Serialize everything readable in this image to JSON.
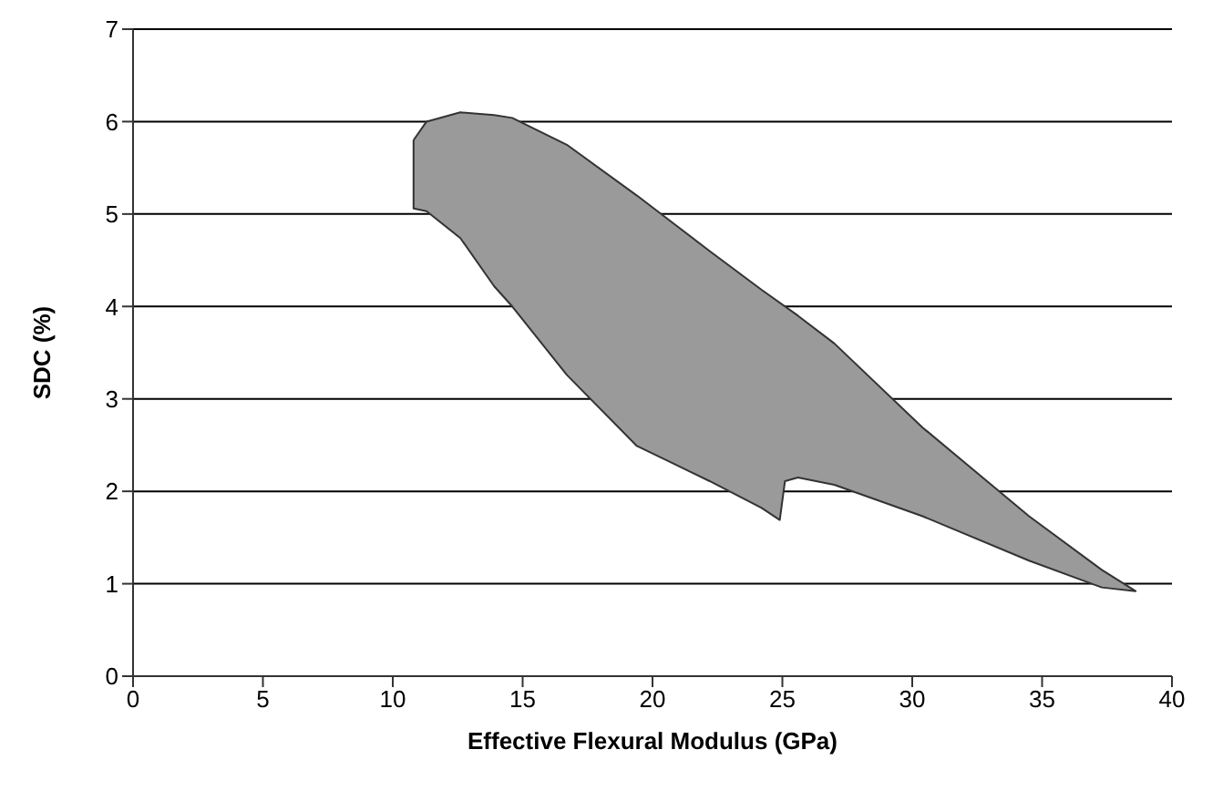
{
  "chart_data": {
    "type": "area",
    "xlabel": "Effective Flexural Modulus (GPa)",
    "ylabel": "SDC (%)",
    "xlim": [
      0,
      40
    ],
    "xticks": [
      0,
      5,
      10,
      15,
      20,
      25,
      30,
      35,
      40
    ],
    "ylim": [
      0,
      7
    ],
    "yticks": [
      0,
      1,
      2,
      3,
      4,
      5,
      6,
      7
    ],
    "grid": "y",
    "series": [
      {
        "color": "#9a9a9a",
        "x": [
          10.8,
          11.3,
          12.6,
          13.9,
          14.6,
          16.7,
          19.4,
          20.8,
          22.2,
          24.2,
          25.6,
          27,
          30.4,
          34.5,
          37.3,
          38.6,
          37.3,
          34.5,
          30.4,
          27,
          25.6,
          25.1,
          24.9,
          24.2,
          22.2,
          20.8,
          19.4,
          16.7,
          14.6,
          13.9,
          12.6,
          11.3,
          10.8,
          10.8
        ],
        "values": [
          5.8,
          6.0,
          6.1,
          6.07,
          6.04,
          5.75,
          5.2,
          4.9,
          4.6,
          4.18,
          3.9,
          3.6,
          2.69,
          1.73,
          1.15,
          0.92,
          0.96,
          1.25,
          1.73,
          2.07,
          2.15,
          2.11,
          1.69,
          1.82,
          2.11,
          2.3,
          2.49,
          3.26,
          4.0,
          4.22,
          4.74,
          5.03,
          5.06,
          5.8
        ]
      }
    ]
  }
}
